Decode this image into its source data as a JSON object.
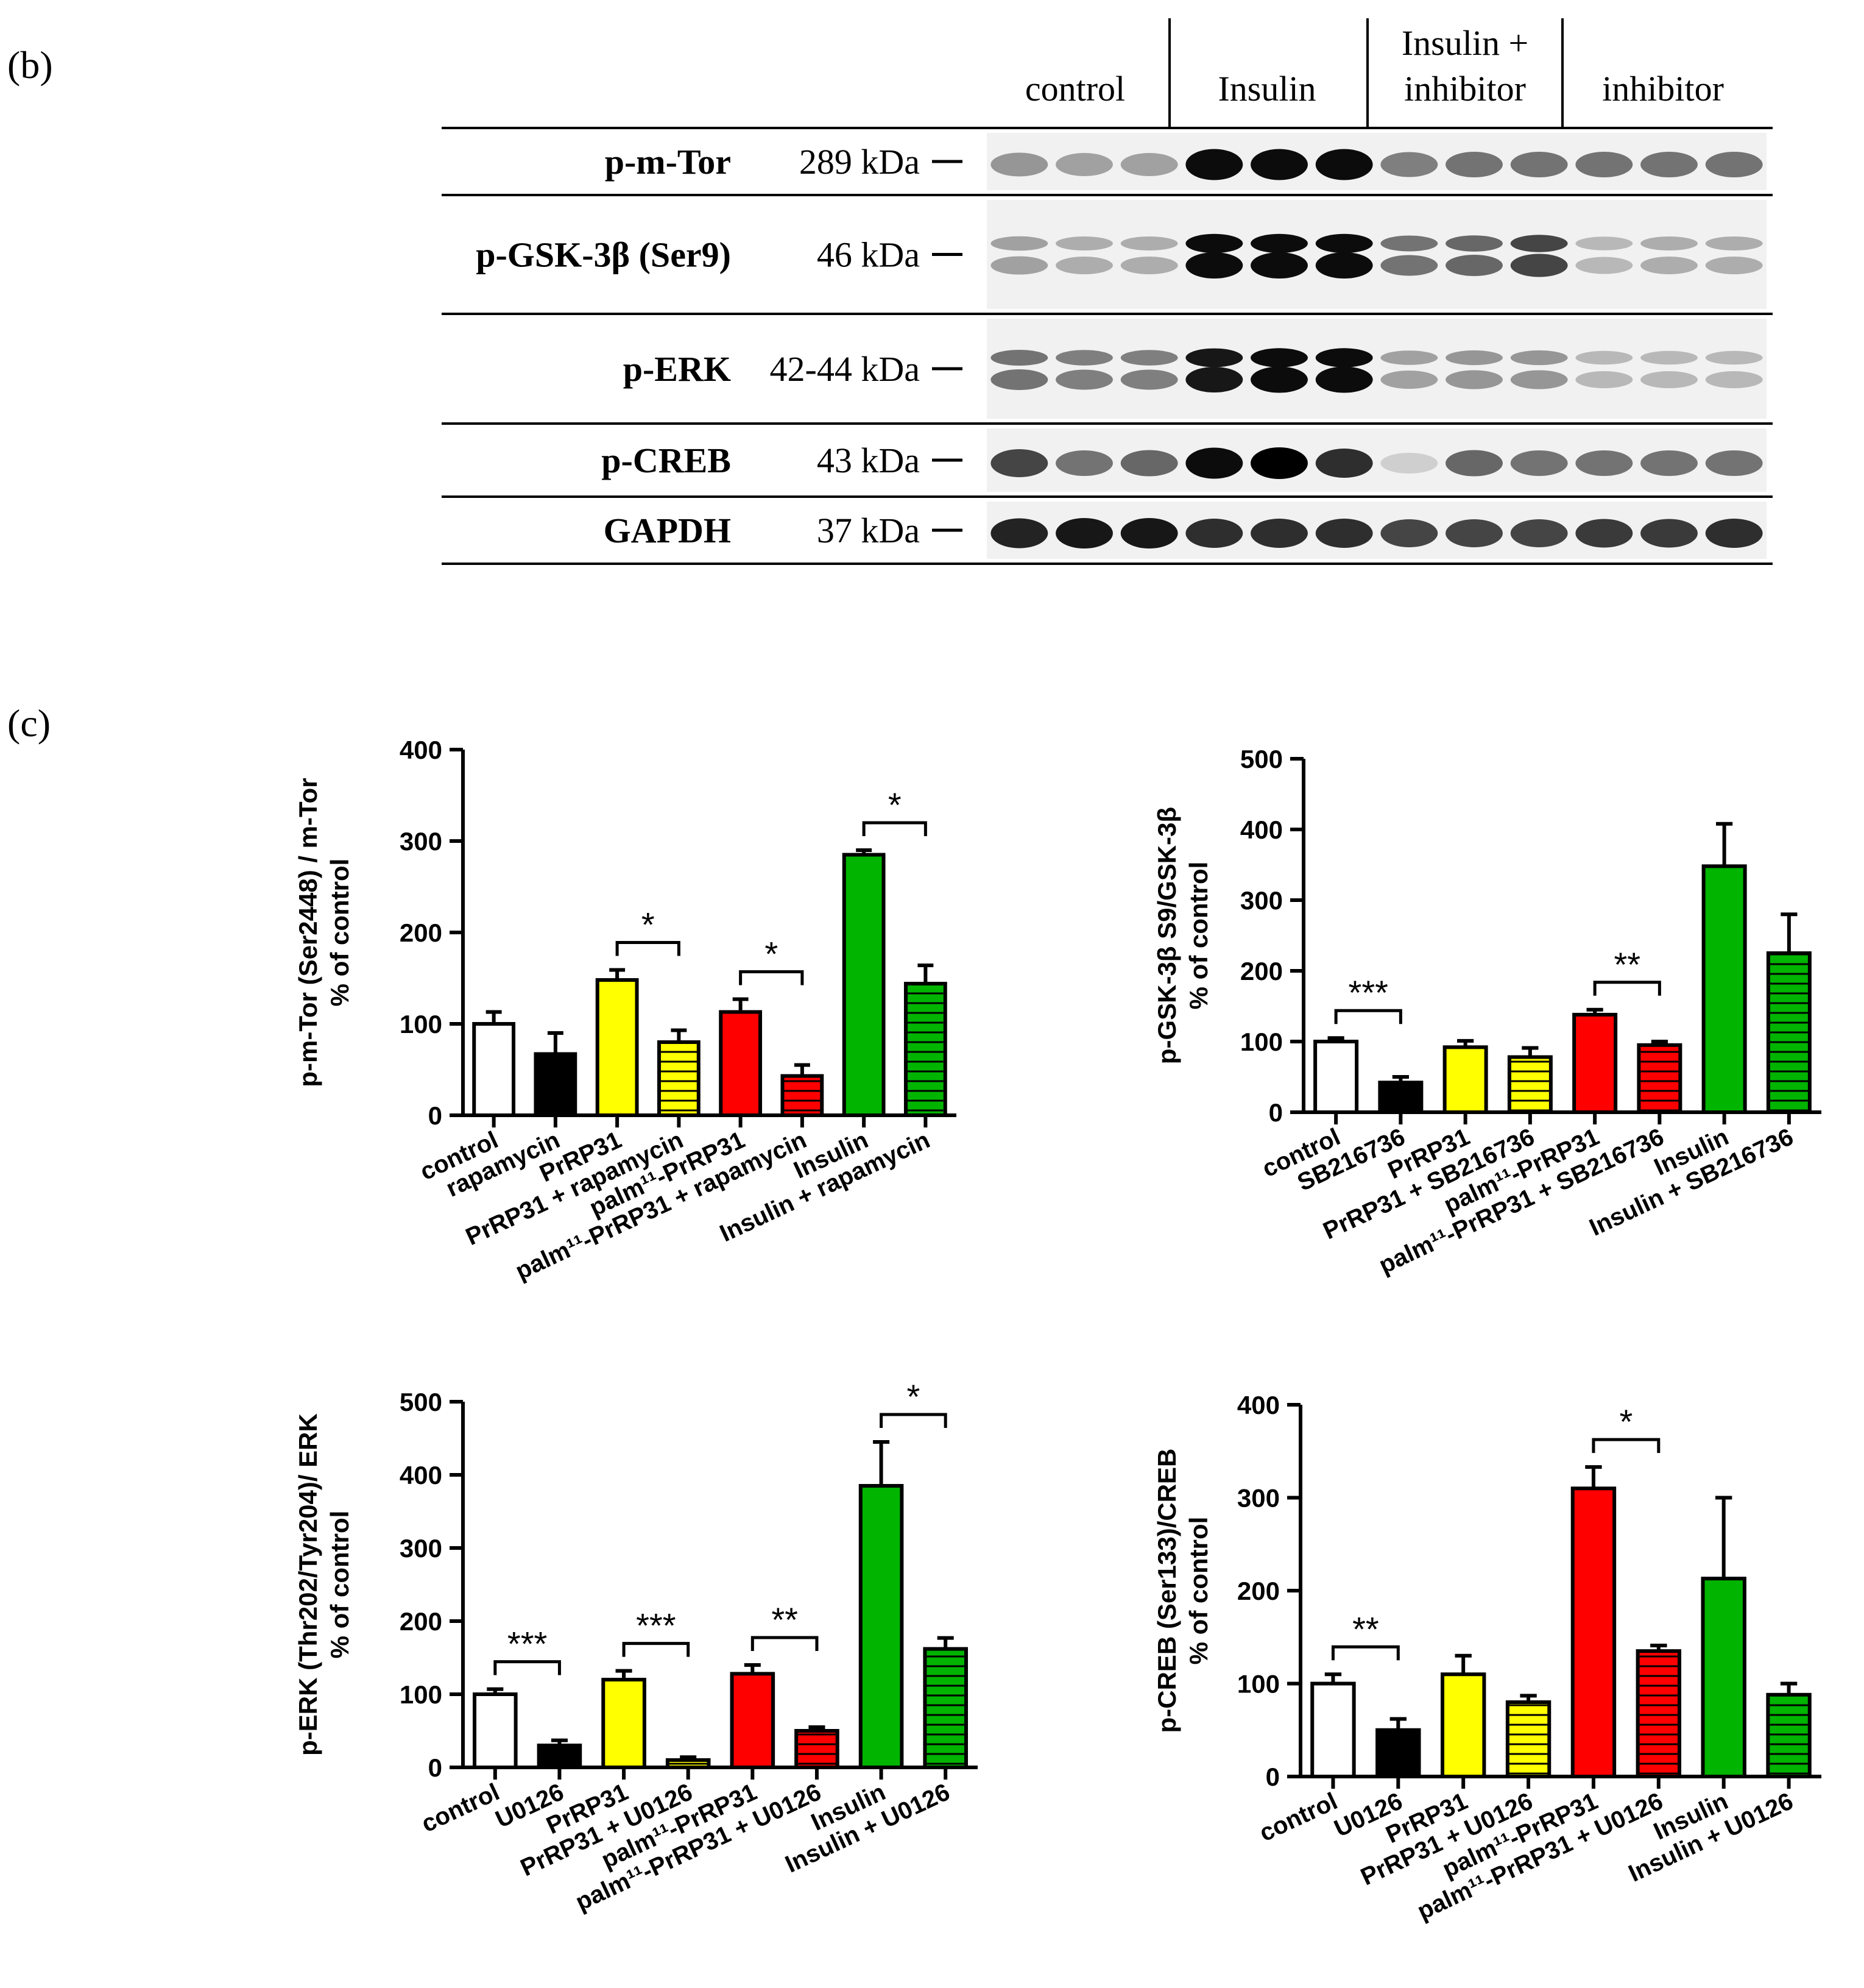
{
  "panel_b": {
    "letter": "(b)",
    "groups": [
      "control",
      "Insulin",
      "Insulin +\ninhibitor",
      "inhibitor"
    ],
    "rows": [
      {
        "name": "p-m-Tor",
        "kda": "289 kDa"
      },
      {
        "name": "p-GSK-3β (Ser9)",
        "kda": "46 kDa"
      },
      {
        "name": "p-ERK",
        "kda": "42-44 kDa"
      },
      {
        "name": "p-CREB",
        "kda": "43 kDa"
      },
      {
        "name": "GAPDH",
        "kda": "37 kDa"
      }
    ]
  },
  "panel_c": {
    "letter": "(c)"
  },
  "colors": {
    "white": "#ffffff",
    "black": "#000000",
    "yellow": "#ffff00",
    "red": "#ff0000",
    "green": "#00b400"
  },
  "chart_data": [
    {
      "type": "bar",
      "ylabel": "p-m-Tor (Ser2448) / m-Tor\n% of control",
      "ylim": [
        0,
        400
      ],
      "yticks": [
        0,
        100,
        200,
        300,
        400
      ],
      "categories": [
        "control",
        "rapamycin",
        "PrRP31",
        "PrRP31 + rapamycin",
        "palm¹¹-PrRP31",
        "palm¹¹-PrRP31 + rapamycin",
        "Insulin",
        "Insulin + rapamycin"
      ],
      "values": [
        100,
        67,
        148,
        80,
        113,
        43,
        285,
        144
      ],
      "errors": [
        13,
        23,
        11,
        13,
        14,
        12,
        5,
        20
      ],
      "fills": [
        "white",
        "black",
        "yellow",
        "yellow-hatch",
        "red",
        "red-hatch",
        "green",
        "green-hatch"
      ],
      "significance": [
        {
          "from": 2,
          "to": 3,
          "label": "*"
        },
        {
          "from": 4,
          "to": 5,
          "label": "*"
        },
        {
          "from": 6,
          "to": 7,
          "label": "*"
        }
      ]
    },
    {
      "type": "bar",
      "ylabel": "p-GSK-3β S9/GSK-3β\n% of control",
      "ylim": [
        0,
        500
      ],
      "yticks": [
        0,
        100,
        200,
        300,
        400,
        500
      ],
      "categories": [
        "control",
        "SB216736",
        "PrRP31",
        "PrRP31 + SB216736",
        "palm¹¹-PrRP31",
        "palm¹¹-PrRP31 + SB216736",
        "Insulin",
        "Insulin + SB216736"
      ],
      "values": [
        100,
        42,
        92,
        78,
        138,
        95,
        348,
        225
      ],
      "errors": [
        5,
        8,
        9,
        13,
        7,
        5,
        60,
        55
      ],
      "fills": [
        "white",
        "black",
        "yellow",
        "yellow-hatch",
        "red",
        "red-hatch",
        "green",
        "green-hatch"
      ],
      "significance": [
        {
          "from": 0,
          "to": 1,
          "label": "***"
        },
        {
          "from": 4,
          "to": 5,
          "label": "**"
        }
      ]
    },
    {
      "type": "bar",
      "ylabel": "p-ERK (Thr202/Tyr204)/ ERK\n% of control",
      "ylim": [
        0,
        500
      ],
      "yticks": [
        0,
        100,
        200,
        300,
        400,
        500
      ],
      "categories": [
        "control",
        "U0126",
        "PrRP31",
        "PrRP31 + U0126",
        "palm¹¹-PrRP31",
        "palm¹¹-PrRP31 + U0126",
        "Insulin",
        "Insulin + U0126"
      ],
      "values": [
        100,
        30,
        120,
        10,
        128,
        50,
        385,
        162
      ],
      "errors": [
        7,
        7,
        12,
        4,
        12,
        5,
        60,
        15
      ],
      "fills": [
        "white",
        "black",
        "yellow",
        "yellow-hatch",
        "red",
        "red-hatch",
        "green",
        "green-hatch"
      ],
      "significance": [
        {
          "from": 0,
          "to": 1,
          "label": "***"
        },
        {
          "from": 2,
          "to": 3,
          "label": "***"
        },
        {
          "from": 4,
          "to": 5,
          "label": "**"
        },
        {
          "from": 6,
          "to": 7,
          "label": "*"
        }
      ]
    },
    {
      "type": "bar",
      "ylabel": "p-CREB (Ser133)/CREB\n% of control",
      "ylim": [
        0,
        400
      ],
      "yticks": [
        0,
        100,
        200,
        300,
        400
      ],
      "categories": [
        "control",
        "U0126",
        "PrRP31",
        "PrRP31 + U0126",
        "palm¹¹-PrRP31",
        "palm¹¹-PrRP31 + U0126",
        "Insulin",
        "Insulin + U0126"
      ],
      "values": [
        100,
        50,
        110,
        80,
        310,
        135,
        213,
        88
      ],
      "errors": [
        10,
        12,
        20,
        7,
        23,
        6,
        87,
        12
      ],
      "fills": [
        "white",
        "black",
        "yellow",
        "yellow-hatch",
        "red",
        "red-hatch",
        "green",
        "green-hatch"
      ],
      "significance": [
        {
          "from": 0,
          "to": 1,
          "label": "**"
        },
        {
          "from": 4,
          "to": 5,
          "label": "*"
        }
      ]
    }
  ]
}
